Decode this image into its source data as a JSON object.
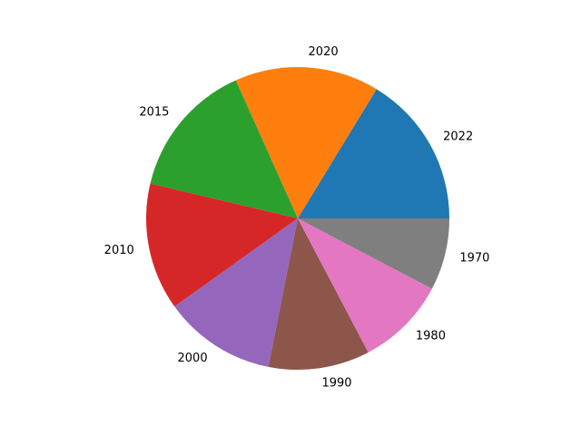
{
  "chart_data": {
    "type": "pie",
    "title": "",
    "labels": [
      "2022",
      "2020",
      "2015",
      "2010",
      "2000",
      "1990",
      "1980",
      "1970"
    ],
    "values": [
      16.3,
      15.4,
      14.6,
      13.6,
      12.0,
      10.8,
      9.6,
      7.7
    ],
    "colors": [
      "#1f77b4",
      "#ff7f0e",
      "#2ca02c",
      "#d62728",
      "#9467bd",
      "#8c564b",
      "#e377c2",
      "#7f7f7f"
    ],
    "start_angle_deg": 0,
    "direction": "counterclockwise",
    "legend": "none"
  }
}
